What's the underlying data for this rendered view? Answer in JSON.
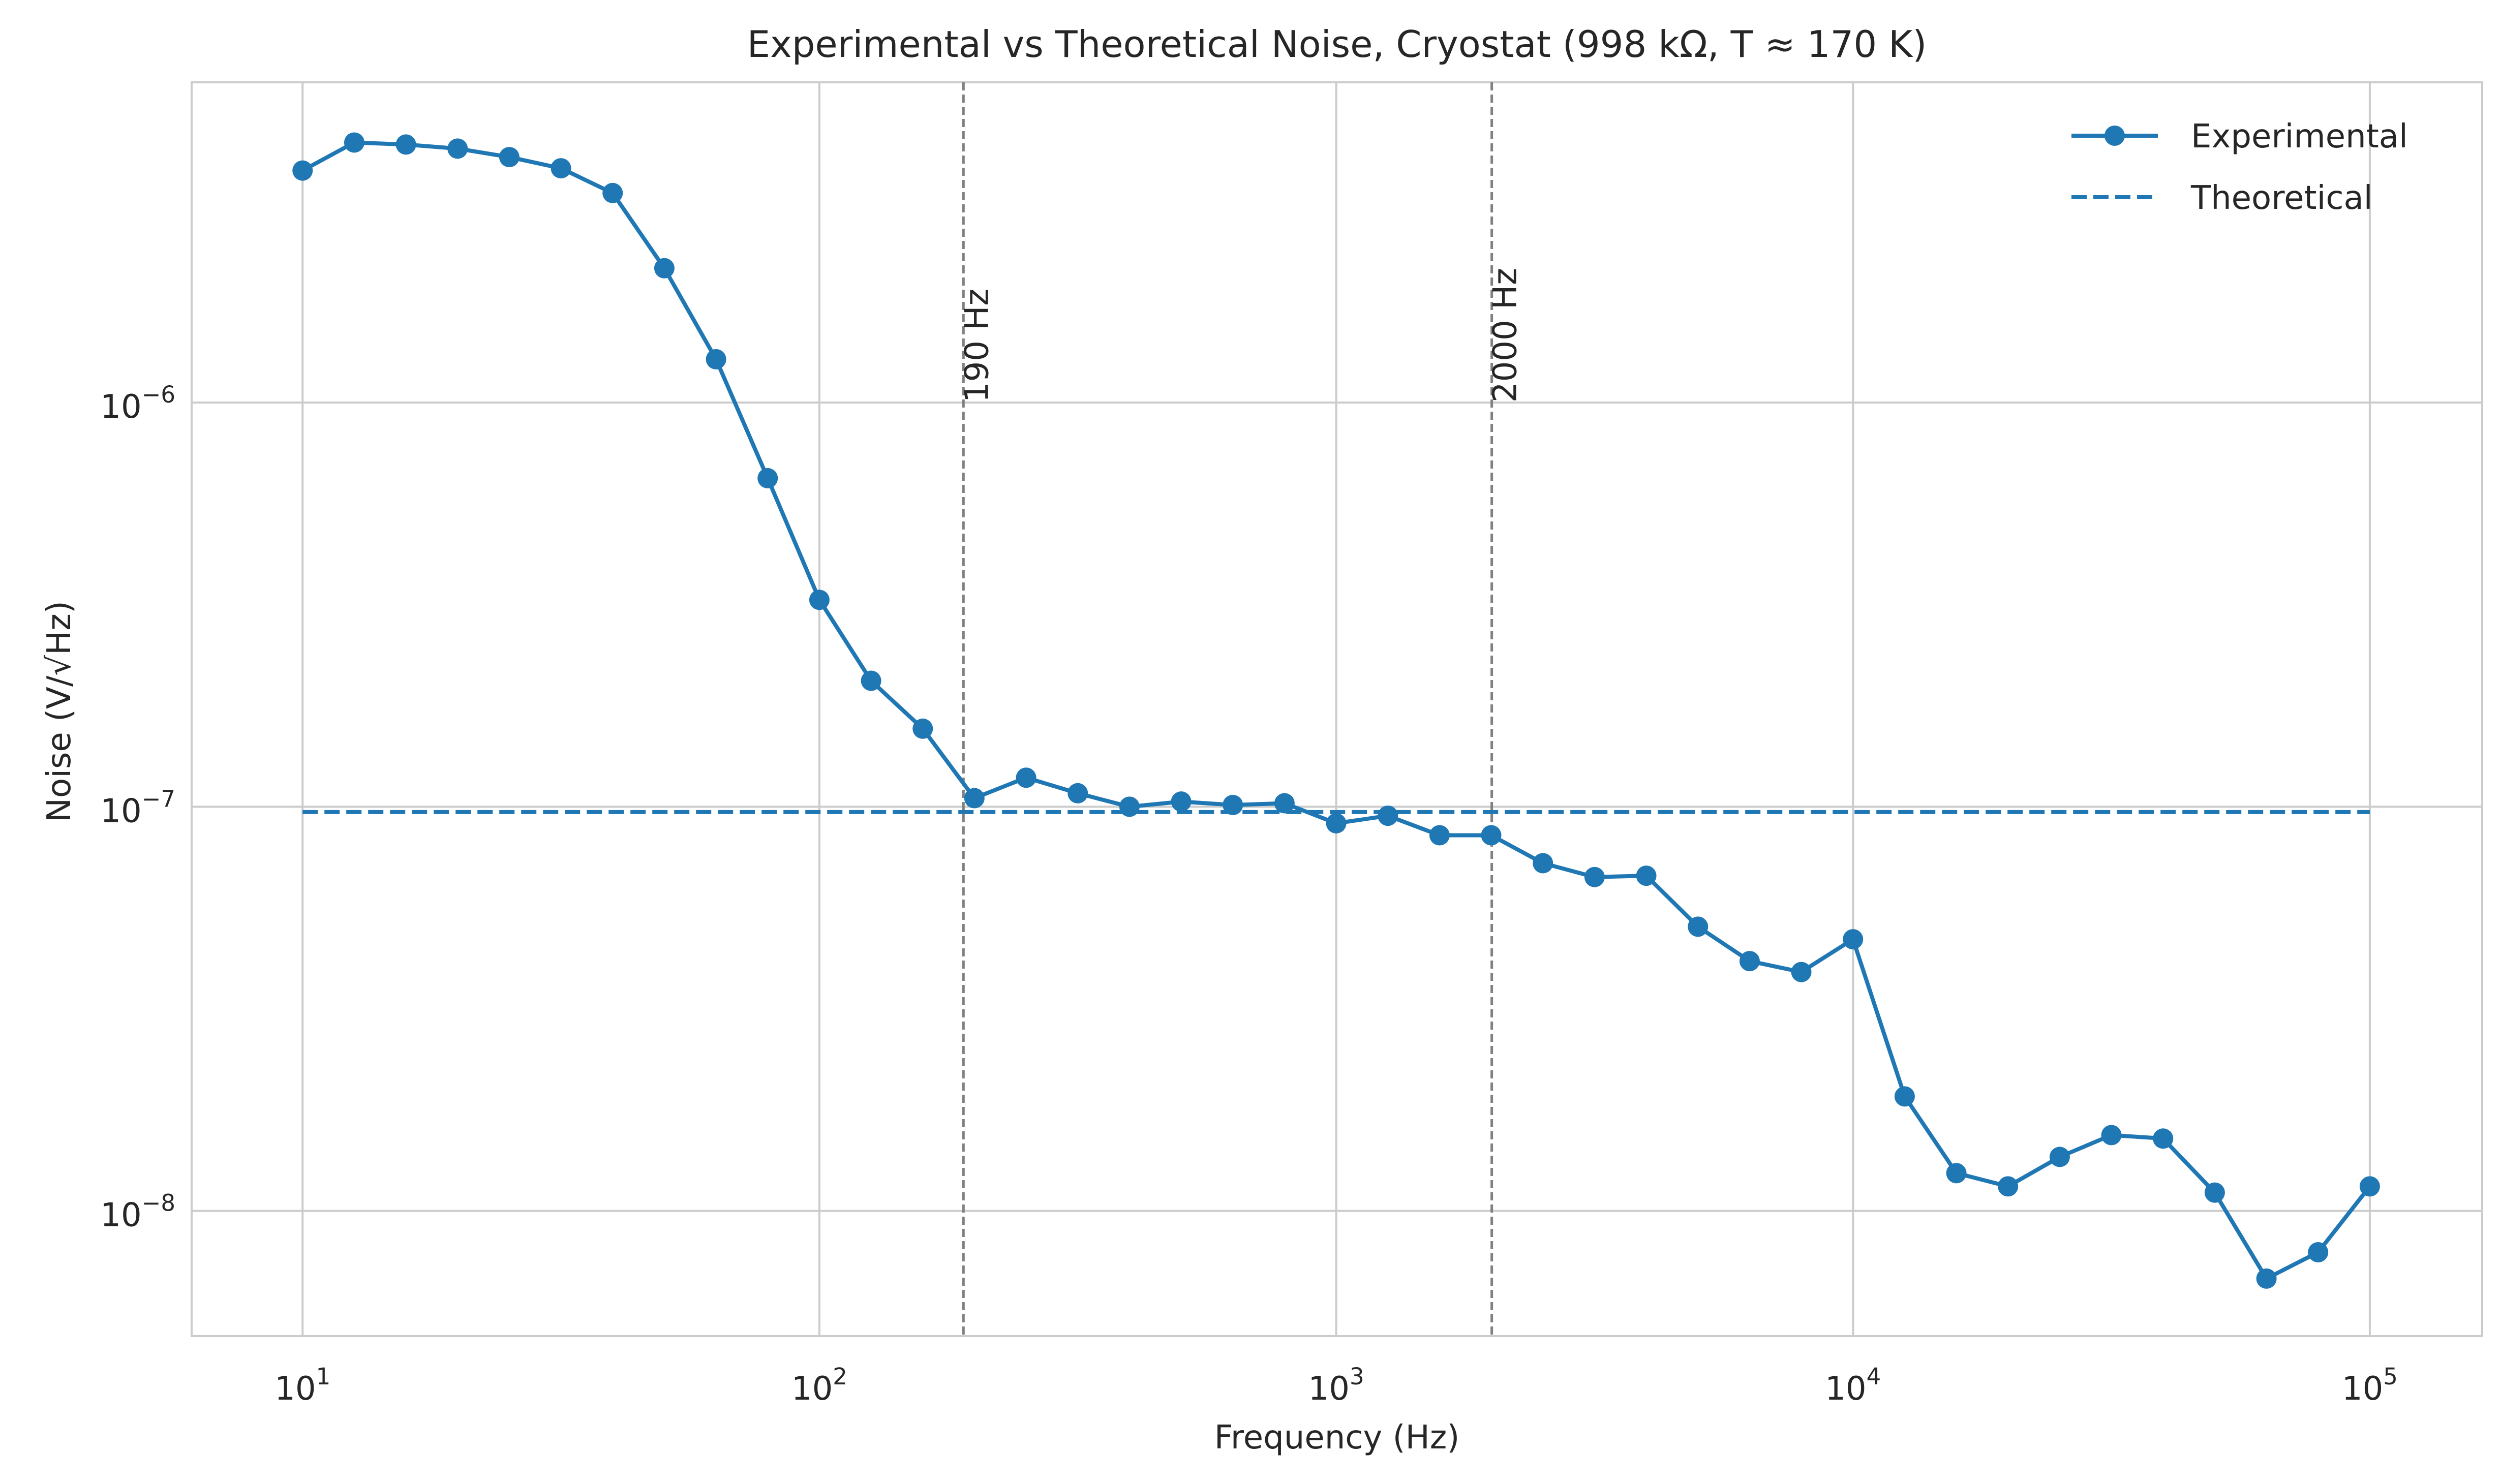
{
  "chart_data": {
    "type": "line",
    "title": "Experimental vs Theoretical Noise, Cryostat (998 kΩ, T ≈ 170 K)",
    "xlabel": "Frequency (Hz)",
    "ylabel": "Noise (V/√Hz)",
    "x_scale": "log",
    "y_scale": "log",
    "xlim": [
      6.1,
      165000
    ],
    "ylim": [
      4.9e-09,
      6.2e-06
    ],
    "x_ticks": [
      {
        "value": 10,
        "base": "10",
        "exp": "1"
      },
      {
        "value": 100,
        "base": "10",
        "exp": "2"
      },
      {
        "value": 1000,
        "base": "10",
        "exp": "3"
      },
      {
        "value": 10000,
        "base": "10",
        "exp": "4"
      },
      {
        "value": 100000,
        "base": "10",
        "exp": "5"
      }
    ],
    "y_ticks": [
      {
        "value": 1e-08,
        "base": "10",
        "exp": "−8"
      },
      {
        "value": 1e-07,
        "base": "10",
        "exp": "−7"
      },
      {
        "value": 1e-06,
        "base": "10",
        "exp": "−6"
      }
    ],
    "grid": true,
    "legend_position": "top-right",
    "series": [
      {
        "name": "Experimental",
        "style": "line-marker",
        "color": "#1f77b4",
        "x": [
          10,
          12.59,
          15.85,
          19.95,
          25.12,
          31.62,
          39.81,
          50.12,
          63.1,
          79.43,
          100,
          125.9,
          158.5,
          199.5,
          251.2,
          316.2,
          398.1,
          501.2,
          631,
          794.3,
          1000,
          1259,
          1585,
          1995,
          2512,
          3162,
          3981,
          5012,
          6310,
          7943,
          10000,
          12590,
          15850,
          19950,
          25120,
          31620,
          39810,
          50120,
          63100,
          79430,
          100000
        ],
        "y": [
          3.75e-06,
          4.4e-06,
          4.35e-06,
          4.25e-06,
          4.05e-06,
          3.8e-06,
          3.3e-06,
          2.15e-06,
          1.28e-06,
          6.5e-07,
          3.25e-07,
          2.05e-07,
          1.56e-07,
          1.05e-07,
          1.18e-07,
          1.08e-07,
          1e-07,
          1.03e-07,
          1.01e-07,
          1.02e-07,
          9.1e-08,
          9.5e-08,
          8.5e-08,
          8.5e-08,
          7.25e-08,
          6.7e-08,
          6.75e-08,
          5.05e-08,
          4.15e-08,
          3.9e-08,
          4.7e-08,
          1.92e-08,
          1.24e-08,
          1.15e-08,
          1.36e-08,
          1.54e-08,
          1.51e-08,
          1.11e-08,
          6.8e-09,
          7.9e-09,
          1.15e-08
        ]
      },
      {
        "name": "Theoretical",
        "style": "dashed",
        "color": "#1f77b4",
        "x": [
          10,
          100000
        ],
        "y": [
          9.7e-08,
          9.7e-08
        ]
      }
    ],
    "vlines": [
      {
        "x": 190,
        "label": "190 Hz",
        "color": "#808080"
      },
      {
        "x": 2000,
        "label": "2000 Hz",
        "color": "#808080"
      }
    ]
  }
}
